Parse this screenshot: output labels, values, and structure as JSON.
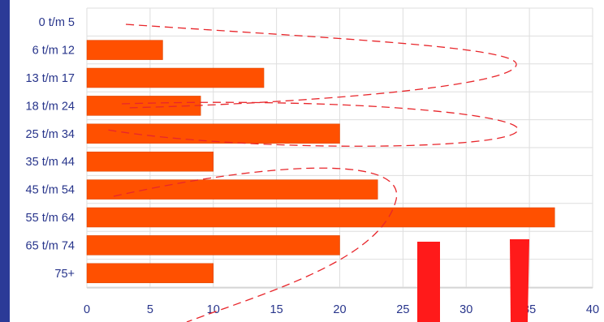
{
  "chart_data": {
    "type": "bar",
    "orientation": "horizontal",
    "categories": [
      "0 t/m 5",
      "6 t/m 12",
      "13 t/m 17",
      "18 t/m 24",
      "25 t/m 34",
      "35 t/m 44",
      "45 t/m 54",
      "55 t/m 64",
      "65 t/m 74",
      "75+"
    ],
    "values": [
      0,
      6,
      14,
      9,
      20,
      10,
      23,
      37,
      20,
      10
    ],
    "xlim": [
      0,
      40
    ],
    "xticks": [
      0,
      5,
      10,
      15,
      20,
      25,
      30,
      35,
      40
    ],
    "title": "",
    "xlabel": "",
    "ylabel": "",
    "grid": true,
    "legend": "none",
    "colors": {
      "bar": "#ff5000",
      "bar_edge": "#d84400",
      "grid": "#dedede",
      "label": "#27348b",
      "frame": "#2b3a97",
      "background": "#ffffff",
      "annotation_dash": "#e8262b",
      "annotation_block": "#ff1a1a"
    }
  }
}
